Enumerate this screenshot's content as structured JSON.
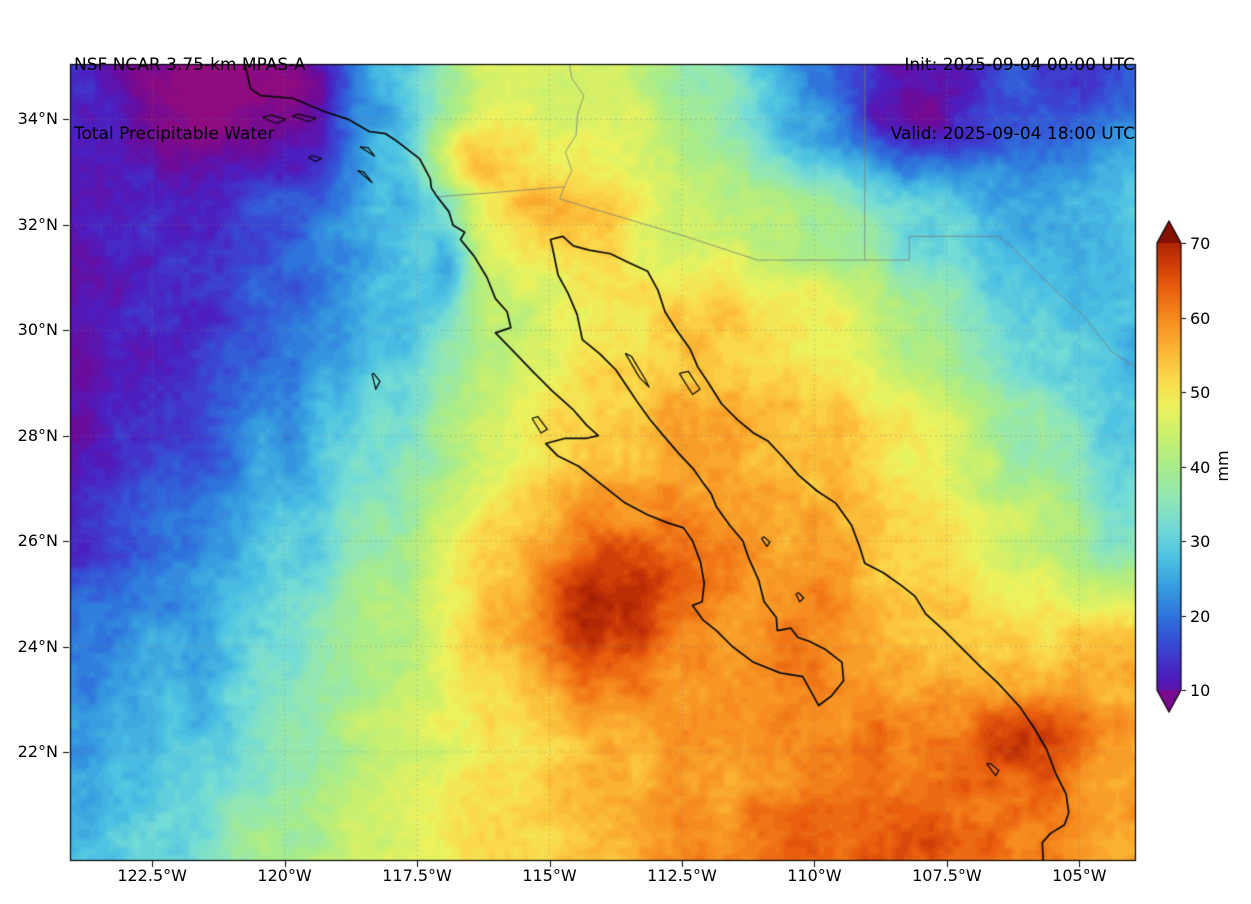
{
  "header": {
    "model_line": "NSF NCAR 3.75-km MPAS-A",
    "product_line": "Total Precipitable Water",
    "init_line": "Init: 2025-09-04 00:00 UTC",
    "valid_line": "Valid: 2025-09-04 18:00 UTC"
  },
  "chart_data": {
    "type": "heatmap",
    "title": "Total Precipitable Water",
    "units": "mm",
    "value_range": [
      10,
      70
    ],
    "x_axis": {
      "ticks": [
        "122.5°W",
        "120°W",
        "117.5°W",
        "115°W",
        "112.5°W",
        "110°W",
        "107.5°W",
        "105°W"
      ],
      "tick_lons": [
        -122.5,
        -120,
        -117.5,
        -115,
        -112.5,
        -110,
        -107.5,
        -105
      ],
      "lon_range": [
        -124.05,
        -103.95
      ]
    },
    "y_axis": {
      "ticks": [
        "34°N",
        "32°N",
        "30°N",
        "28°N",
        "26°N",
        "24°N",
        "22°N"
      ],
      "tick_lats": [
        34,
        32,
        30,
        28,
        26,
        24,
        22
      ],
      "lat_range": [
        19.95,
        35.05
      ]
    },
    "colorbar": {
      "label": "mm",
      "ticks": [
        10,
        20,
        30,
        40,
        50,
        60,
        70
      ],
      "min": 10,
      "max": 70,
      "extend": "both"
    },
    "colormap": [
      [
        3,
        "#8f0b7f"
      ],
      [
        8,
        "#6b0b9b"
      ],
      [
        12,
        "#4c1fc0"
      ],
      [
        16,
        "#3948d4"
      ],
      [
        20,
        "#2f74dc"
      ],
      [
        24,
        "#379fe0"
      ],
      [
        28,
        "#4fc3e2"
      ],
      [
        32,
        "#74dcd6"
      ],
      [
        36,
        "#92e7b4"
      ],
      [
        40,
        "#a9ec8a"
      ],
      [
        44,
        "#c9f06e"
      ],
      [
        48,
        "#ecf25e"
      ],
      [
        52,
        "#fbd94a"
      ],
      [
        56,
        "#fbb232"
      ],
      [
        60,
        "#f68b1f"
      ],
      [
        64,
        "#e95f0e"
      ],
      [
        68,
        "#c63606"
      ],
      [
        72,
        "#991802"
      ],
      [
        76,
        "#700a01"
      ]
    ],
    "grid": {
      "lons": [
        -124,
        -122,
        -120,
        -118,
        -116,
        -114,
        -112,
        -110,
        -108,
        -106,
        -104
      ],
      "lats": [
        36,
        34,
        32,
        30,
        28,
        26,
        24,
        22,
        20
      ],
      "values_mm": [
        [
          14,
          6,
          9,
          30,
          46,
          44,
          34,
          20,
          12,
          16,
          22
        ],
        [
          13,
          7,
          9,
          26,
          46,
          47,
          38,
          25,
          14,
          18,
          24
        ],
        [
          10,
          13,
          18,
          26,
          47,
          50,
          44,
          40,
          32,
          26,
          28
        ],
        [
          9,
          13,
          19,
          28,
          42,
          50,
          54,
          50,
          40,
          30,
          27
        ],
        [
          10,
          16,
          24,
          33,
          46,
          54,
          57,
          54,
          49,
          38,
          28
        ],
        [
          14,
          20,
          28,
          38,
          52,
          60,
          59,
          57,
          52,
          44,
          34
        ],
        [
          20,
          25,
          32,
          42,
          54,
          64,
          58,
          61,
          55,
          52,
          55
        ],
        [
          24,
          28,
          36,
          44,
          50,
          55,
          58,
          60,
          62,
          63,
          57
        ],
        [
          27,
          32,
          40,
          46,
          51,
          55,
          60,
          64,
          65,
          61,
          58
        ]
      ]
    },
    "hotspots": [
      {
        "lon": -113.9,
        "lat": 25.0,
        "amp": 8,
        "rx": 1.6,
        "ry": 1.1
      },
      {
        "lon": -120.6,
        "lat": 34.6,
        "amp": -6,
        "rx": 1.8,
        "ry": 1.0
      },
      {
        "lon": -108.3,
        "lat": 34.3,
        "amp": -7,
        "rx": 1.3,
        "ry": 0.9
      },
      {
        "lon": -104.6,
        "lat": 34.7,
        "amp": -8,
        "rx": 0.9,
        "ry": 0.7
      },
      {
        "lon": -116.6,
        "lat": 33.3,
        "amp": 9,
        "rx": 1.1,
        "ry": 0.7
      },
      {
        "lon": -115.0,
        "lat": 32.3,
        "amp": 7,
        "rx": 1.2,
        "ry": 0.7
      },
      {
        "lon": -116.9,
        "lat": 31.4,
        "amp": -12,
        "rx": 0.4,
        "ry": 0.9
      },
      {
        "lon": -105.7,
        "lat": 22.4,
        "amp": 5,
        "rx": 1.1,
        "ry": 0.9
      }
    ],
    "noise": {
      "amp1": 2.0,
      "scale1": 0.55,
      "amp2": 1.4,
      "scale2": 0.16
    }
  },
  "map_layers": {
    "coastline_color": "#0a0a0a",
    "border_color": "rgba(120,120,120,0.8)",
    "graticule_color": "rgba(130,130,130,0.45)",
    "coastlines": [
      [
        [
          -120.75,
          35.05
        ],
        [
          -120.64,
          34.58
        ],
        [
          -120.45,
          34.45
        ],
        [
          -119.85,
          34.4
        ],
        [
          -119.25,
          34.15
        ],
        [
          -118.8,
          34.0
        ],
        [
          -118.4,
          33.77
        ],
        [
          -118.1,
          33.73
        ],
        [
          -117.9,
          33.6
        ],
        [
          -117.45,
          33.25
        ],
        [
          -117.25,
          32.87
        ],
        [
          -117.23,
          32.7
        ],
        [
          -117.12,
          32.53
        ],
        [
          -116.9,
          32.25
        ],
        [
          -116.82,
          31.99
        ],
        [
          -116.6,
          31.86
        ],
        [
          -116.68,
          31.72
        ],
        [
          -116.42,
          31.4
        ],
        [
          -116.18,
          31.0
        ],
        [
          -116.02,
          30.6
        ],
        [
          -115.8,
          30.35
        ],
        [
          -115.73,
          30.05
        ],
        [
          -116.02,
          29.95
        ],
        [
          -115.68,
          29.6
        ],
        [
          -115.3,
          29.2
        ],
        [
          -114.95,
          28.85
        ],
        [
          -114.56,
          28.5
        ],
        [
          -114.3,
          28.2
        ],
        [
          -114.08,
          28.0
        ],
        [
          -114.3,
          27.95
        ],
        [
          -114.7,
          27.95
        ],
        [
          -115.07,
          27.85
        ],
        [
          -114.85,
          27.62
        ],
        [
          -114.45,
          27.42
        ],
        [
          -114.05,
          27.1
        ],
        [
          -113.57,
          26.72
        ],
        [
          -113.15,
          26.5
        ],
        [
          -112.78,
          26.35
        ],
        [
          -112.47,
          26.25
        ],
        [
          -112.3,
          26.0
        ],
        [
          -112.15,
          25.6
        ],
        [
          -112.08,
          25.2
        ],
        [
          -112.12,
          24.85
        ],
        [
          -112.3,
          24.78
        ],
        [
          -112.1,
          24.5
        ],
        [
          -111.85,
          24.3
        ],
        [
          -111.55,
          24.0
        ],
        [
          -111.15,
          23.7
        ],
        [
          -110.65,
          23.5
        ],
        [
          -110.22,
          23.43
        ],
        [
          -109.92,
          22.88
        ],
        [
          -109.68,
          23.06
        ],
        [
          -109.45,
          23.35
        ],
        [
          -109.48,
          23.7
        ],
        [
          -109.8,
          23.95
        ],
        [
          -110.1,
          24.1
        ],
        [
          -110.31,
          24.17
        ],
        [
          -110.45,
          24.35
        ],
        [
          -110.7,
          24.3
        ],
        [
          -110.72,
          24.55
        ],
        [
          -110.95,
          24.85
        ],
        [
          -111.05,
          25.25
        ],
        [
          -111.25,
          25.7
        ],
        [
          -111.35,
          26.0
        ],
        [
          -111.6,
          26.3
        ],
        [
          -111.85,
          26.65
        ],
        [
          -111.95,
          26.9
        ],
        [
          -112.1,
          27.1
        ],
        [
          -112.27,
          27.35
        ],
        [
          -112.55,
          27.65
        ],
        [
          -112.85,
          28.0
        ],
        [
          -113.1,
          28.3
        ],
        [
          -113.35,
          28.65
        ],
        [
          -113.55,
          28.95
        ],
        [
          -113.75,
          29.25
        ],
        [
          -114.05,
          29.55
        ],
        [
          -114.38,
          29.82
        ],
        [
          -114.48,
          30.3
        ],
        [
          -114.65,
          30.7
        ],
        [
          -114.84,
          31.05
        ],
        [
          -114.92,
          31.45
        ],
        [
          -114.98,
          31.72
        ],
        [
          -114.75,
          31.78
        ],
        [
          -114.55,
          31.6
        ],
        [
          -114.25,
          31.52
        ],
        [
          -113.85,
          31.45
        ],
        [
          -113.54,
          31.3
        ],
        [
          -113.15,
          31.12
        ],
        [
          -112.95,
          30.75
        ],
        [
          -112.82,
          30.35
        ],
        [
          -112.6,
          30.0
        ],
        [
          -112.35,
          29.65
        ],
        [
          -112.2,
          29.3
        ],
        [
          -112.0,
          29.0
        ],
        [
          -111.75,
          28.6
        ],
        [
          -111.45,
          28.3
        ],
        [
          -111.15,
          28.05
        ],
        [
          -110.88,
          27.9
        ],
        [
          -110.6,
          27.6
        ],
        [
          -110.3,
          27.25
        ],
        [
          -109.95,
          26.95
        ],
        [
          -109.6,
          26.72
        ],
        [
          -109.3,
          26.3
        ],
        [
          -109.15,
          25.9
        ],
        [
          -109.05,
          25.58
        ],
        [
          -108.7,
          25.4
        ],
        [
          -108.35,
          25.15
        ],
        [
          -108.1,
          24.95
        ],
        [
          -107.9,
          24.62
        ],
        [
          -107.55,
          24.3
        ],
        [
          -107.2,
          23.95
        ],
        [
          -106.85,
          23.6
        ],
        [
          -106.55,
          23.32
        ],
        [
          -106.42,
          23.18
        ],
        [
          -106.12,
          22.85
        ],
        [
          -105.85,
          22.45
        ],
        [
          -105.62,
          22.05
        ],
        [
          -105.45,
          21.6
        ],
        [
          -105.25,
          21.2
        ],
        [
          -105.2,
          20.85
        ],
        [
          -105.28,
          20.62
        ],
        [
          -105.55,
          20.45
        ],
        [
          -105.7,
          20.28
        ],
        [
          -105.68,
          19.9
        ]
      ]
    ],
    "islands": [
      [
        [
          -120.42,
          34.04
        ],
        [
          -120.15,
          33.92
        ],
        [
          -119.98,
          34.0
        ],
        [
          -120.25,
          34.08
        ],
        [
          -120.42,
          34.04
        ]
      ],
      [
        [
          -119.85,
          34.06
        ],
        [
          -119.55,
          33.96
        ],
        [
          -119.4,
          34.02
        ],
        [
          -119.75,
          34.1
        ],
        [
          -119.85,
          34.06
        ]
      ],
      [
        [
          -118.58,
          33.48
        ],
        [
          -118.3,
          33.3
        ],
        [
          -118.42,
          33.46
        ],
        [
          -118.58,
          33.48
        ]
      ],
      [
        [
          -118.62,
          33.03
        ],
        [
          -118.35,
          32.8
        ],
        [
          -118.5,
          33.0
        ],
        [
          -118.62,
          33.03
        ]
      ],
      [
        [
          -119.55,
          33.28
        ],
        [
          -119.42,
          33.2
        ],
        [
          -119.3,
          33.26
        ],
        [
          -119.48,
          33.31
        ],
        [
          -119.55,
          33.28
        ]
      ],
      [
        [
          -118.35,
          29.17
        ],
        [
          -118.28,
          28.88
        ],
        [
          -118.2,
          29.03
        ],
        [
          -118.32,
          29.18
        ],
        [
          -118.35,
          29.17
        ]
      ],
      [
        [
          -115.33,
          28.33
        ],
        [
          -115.16,
          28.05
        ],
        [
          -115.04,
          28.12
        ],
        [
          -115.22,
          28.36
        ],
        [
          -115.33,
          28.33
        ]
      ],
      [
        [
          -113.57,
          29.56
        ],
        [
          -113.3,
          29.1
        ],
        [
          -113.12,
          28.92
        ],
        [
          -113.2,
          29.08
        ],
        [
          -113.45,
          29.5
        ],
        [
          -113.57,
          29.56
        ]
      ],
      [
        [
          -112.55,
          29.18
        ],
        [
          -112.3,
          28.78
        ],
        [
          -112.16,
          28.88
        ],
        [
          -112.38,
          29.22
        ],
        [
          -112.55,
          29.18
        ]
      ],
      [
        [
          -106.75,
          21.78
        ],
        [
          -106.58,
          21.55
        ],
        [
          -106.52,
          21.65
        ],
        [
          -106.68,
          21.78
        ],
        [
          -106.75,
          21.78
        ]
      ],
      [
        [
          -110.35,
          25.0
        ],
        [
          -110.28,
          24.85
        ],
        [
          -110.2,
          24.92
        ],
        [
          -110.3,
          25.02
        ],
        [
          -110.35,
          25.0
        ]
      ],
      [
        [
          -111.0,
          26.05
        ],
        [
          -110.9,
          25.9
        ],
        [
          -110.84,
          25.98
        ],
        [
          -110.95,
          26.08
        ],
        [
          -111.0,
          26.05
        ]
      ]
    ],
    "borders": [
      [
        [
          -117.12,
          32.53
        ],
        [
          -116.2,
          32.6
        ],
        [
          -114.72,
          32.72
        ],
        [
          -114.81,
          32.49
        ],
        [
          -112.5,
          31.8
        ],
        [
          -111.07,
          31.33
        ],
        [
          -108.21,
          31.33
        ],
        [
          -108.21,
          31.78
        ],
        [
          -106.53,
          31.78
        ],
        [
          -106.3,
          31.6
        ],
        [
          -105.6,
          30.9
        ],
        [
          -104.9,
          30.25
        ],
        [
          -104.4,
          29.6
        ],
        [
          -103.95,
          29.3
        ]
      ],
      [
        [
          -114.72,
          32.72
        ],
        [
          -114.58,
          33.03
        ],
        [
          -114.7,
          33.38
        ],
        [
          -114.5,
          33.7
        ],
        [
          -114.47,
          34.1
        ],
        [
          -114.35,
          34.45
        ],
        [
          -114.58,
          34.78
        ],
        [
          -114.63,
          35.1
        ]
      ],
      [
        [
          -109.05,
          31.33
        ],
        [
          -109.05,
          35.1
        ]
      ]
    ]
  }
}
